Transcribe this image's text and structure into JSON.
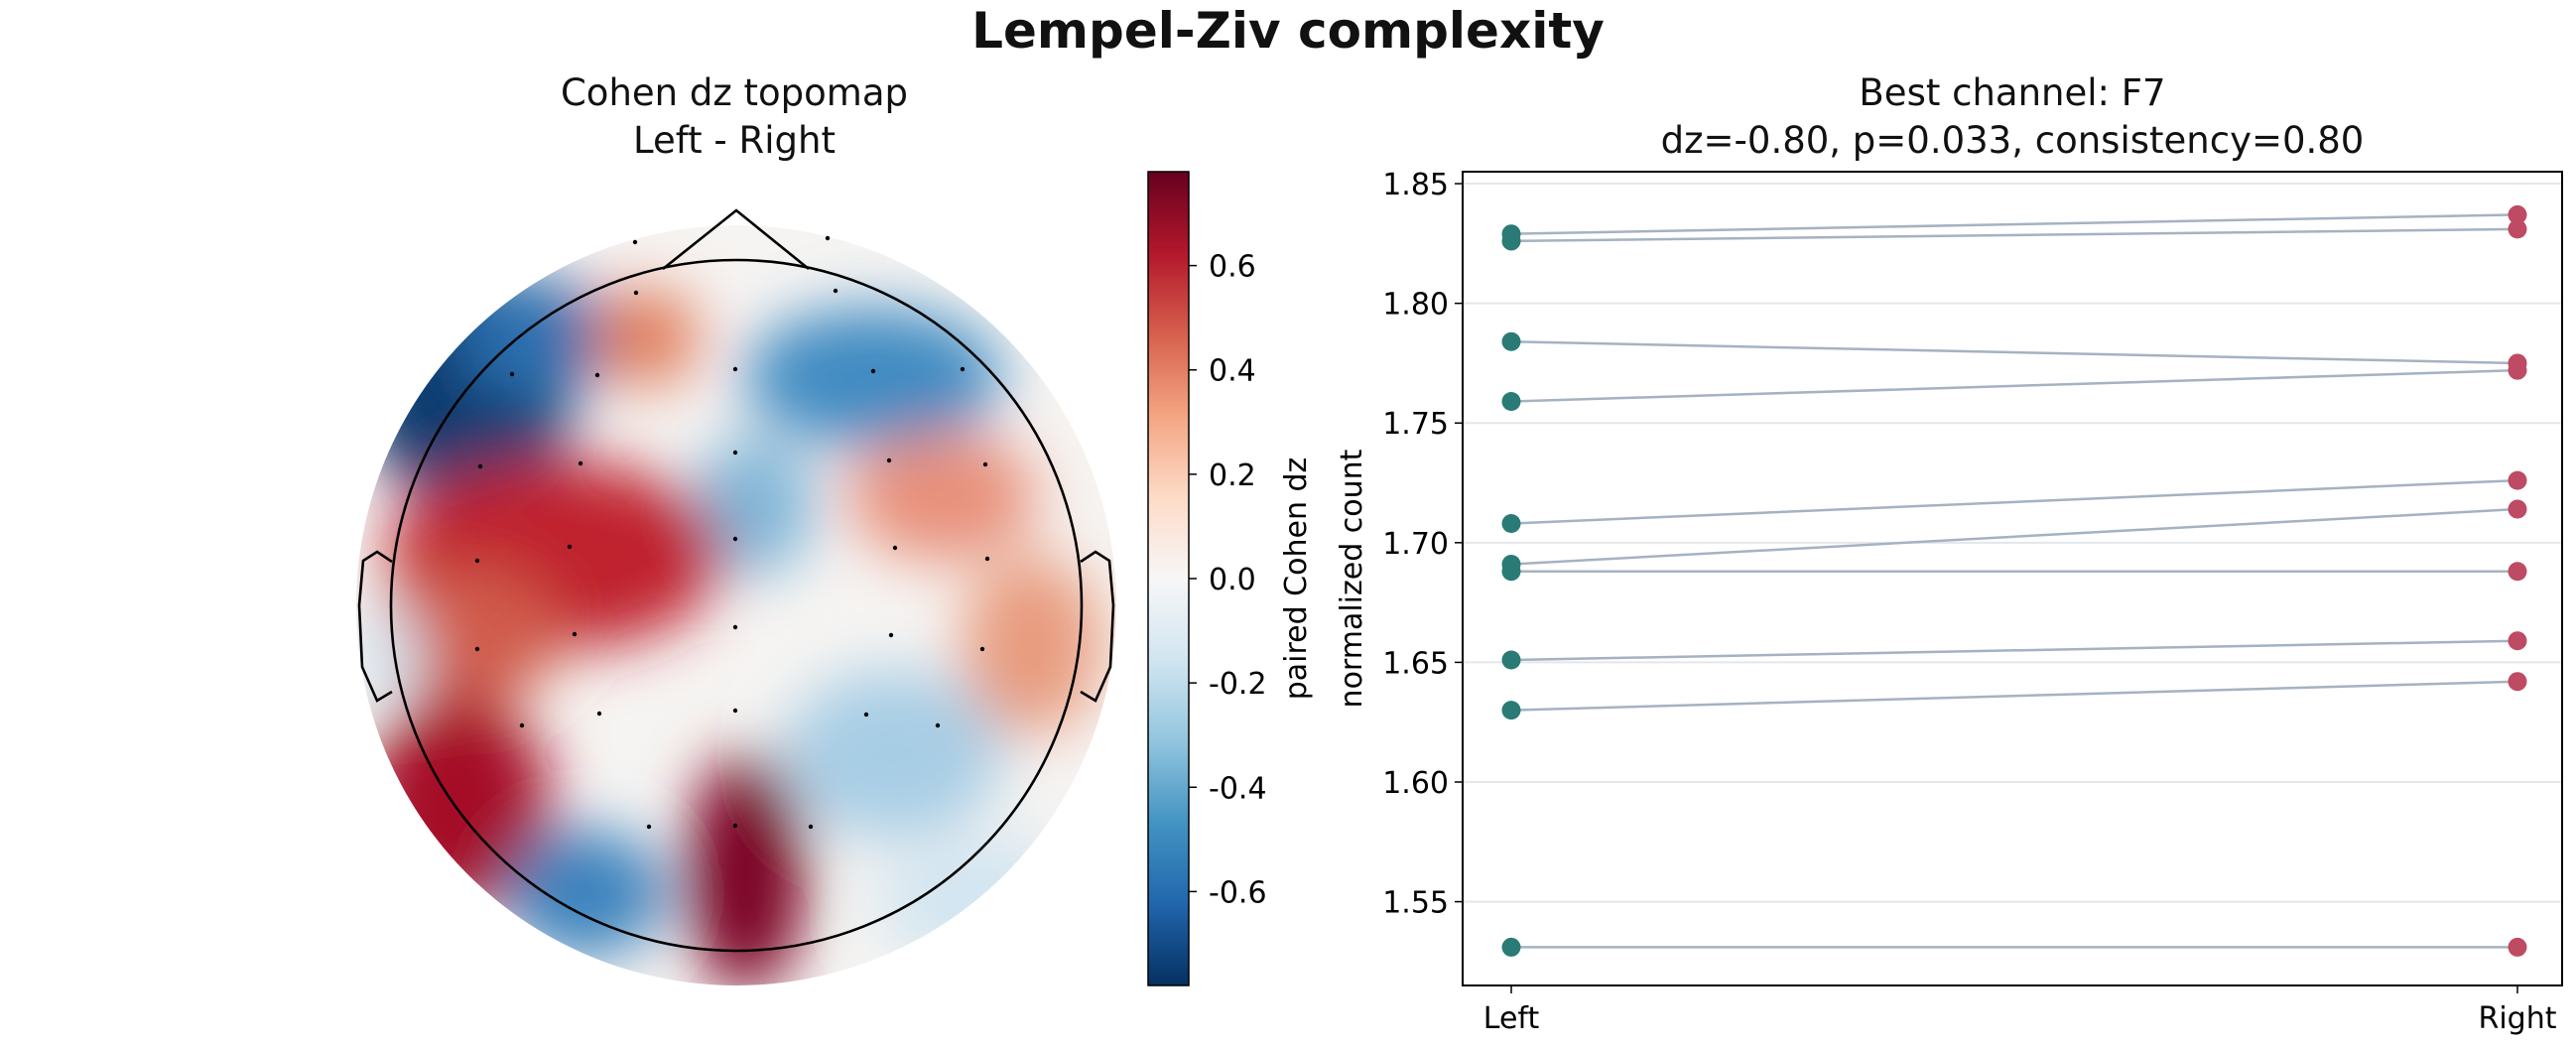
{
  "figure": {
    "suptitle": "Lempel-Ziv complexity"
  },
  "left_panel": {
    "title_line1": "Cohen dz topomap",
    "title_line2": "Left - Right",
    "colorbar_label": "paired Cohen dz",
    "colorbar_ticks": [
      "0.6",
      "0.4",
      "0.2",
      "0.0",
      "-0.2",
      "-0.4",
      "-0.6"
    ],
    "colorbar_range": [
      -0.78,
      0.78
    ],
    "colormap": "RdBu_r",
    "colors": {
      "low": "#053061",
      "mid": "#f7f7f7",
      "high": "#67001f"
    }
  },
  "right_panel": {
    "title_line1": "Best channel: F7",
    "title_line2": "dz=-0.80, p=0.033, consistency=0.80"
  },
  "chart_data": [
    {
      "type": "heatmap",
      "subtype": "topomap",
      "title": "Cohen dz topomap\nLeft - Right",
      "colorbar_label": "paired Cohen dz",
      "vmin": -0.78,
      "vmax": 0.78,
      "colormap": "RdBu_r"
    },
    {
      "type": "scatter",
      "subtype": "paired-lines",
      "title": "Best channel: F7\ndz=-0.80, p=0.033, consistency=0.80",
      "xlabel": "",
      "ylabel": "normalized count",
      "categories": [
        "Left",
        "Right"
      ],
      "ylim": [
        1.515,
        1.855
      ],
      "yticks": [
        1.55,
        1.6,
        1.65,
        1.7,
        1.75,
        1.8,
        1.85
      ],
      "ytick_labels": [
        "1.55",
        "1.60",
        "1.65",
        "1.70",
        "1.75",
        "1.80",
        "1.85"
      ],
      "grid": "y",
      "colors": {
        "Left": "#2a7a75",
        "Right": "#bf4a63",
        "line": "#a5b2c1"
      },
      "pairs": [
        {
          "left": 1.829,
          "right": 1.837
        },
        {
          "left": 1.826,
          "right": 1.831
        },
        {
          "left": 1.784,
          "right": 1.775
        },
        {
          "left": 1.759,
          "right": 1.772
        },
        {
          "left": 1.708,
          "right": 1.726
        },
        {
          "left": 1.691,
          "right": 1.714
        },
        {
          "left": 1.688,
          "right": 1.688
        },
        {
          "left": 1.651,
          "right": 1.659
        },
        {
          "left": 1.63,
          "right": 1.642
        },
        {
          "left": 1.531,
          "right": 1.531
        }
      ]
    }
  ]
}
